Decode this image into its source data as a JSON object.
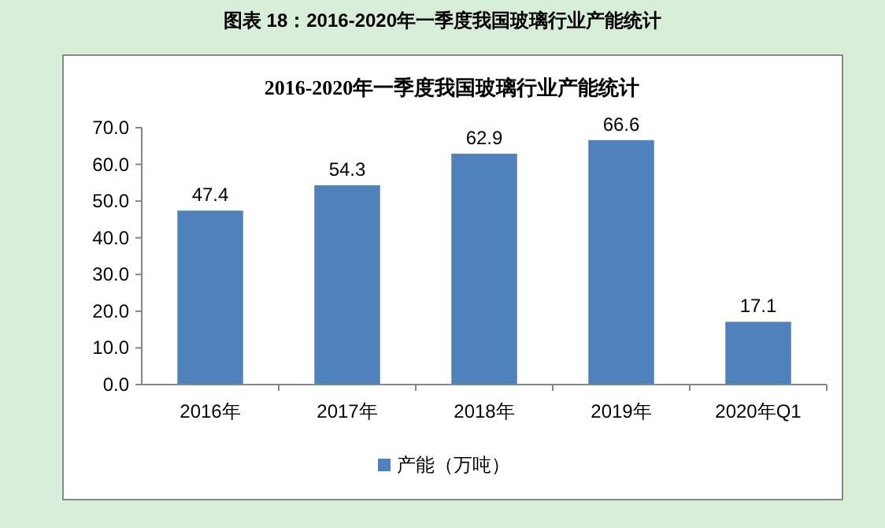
{
  "chart_data": {
    "type": "bar",
    "title": "2016-2020年一季度我国玻璃行业产能统计",
    "annotations": [
      "图表 18：2016-2020年一季度我国玻璃行业产能统计"
    ],
    "categories": [
      "2016年",
      "2017年",
      "2018年",
      "2019年",
      "2020年Q1"
    ],
    "series": [
      {
        "name": "产能（万吨）",
        "color": "#4f81bd",
        "values": [
          47.4,
          54.3,
          62.9,
          66.6,
          17.1
        ]
      }
    ],
    "ylim": [
      0,
      70
    ],
    "yticks": [
      {
        "value": 0,
        "label": "0.0"
      },
      {
        "value": 10,
        "label": "10.0"
      },
      {
        "value": 20,
        "label": "20.0"
      },
      {
        "value": 30,
        "label": "30.0"
      },
      {
        "value": 40,
        "label": "40.0"
      },
      {
        "value": 50,
        "label": "50.0"
      },
      {
        "value": 60,
        "label": "60.0"
      },
      {
        "value": 70,
        "label": "70.0"
      }
    ],
    "data_labels": true,
    "legend": "bottom"
  }
}
